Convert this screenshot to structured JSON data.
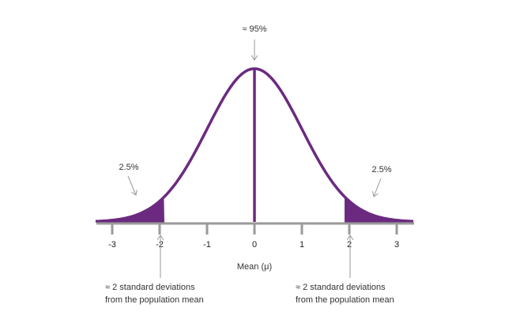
{
  "annotations": {
    "center": "≈ 95%",
    "left_tail": "2.5%",
    "right_tail": "2.5%"
  },
  "axis": {
    "ticks": [
      "-3",
      "-2",
      "-1",
      "0",
      "1",
      "2",
      "3"
    ],
    "label": "Mean (μ)"
  },
  "notes": {
    "left": [
      "≈ 2 standard deviations",
      "from the population mean"
    ],
    "right": [
      "≈ 2 standard deviations",
      "from the population mean"
    ]
  }
}
